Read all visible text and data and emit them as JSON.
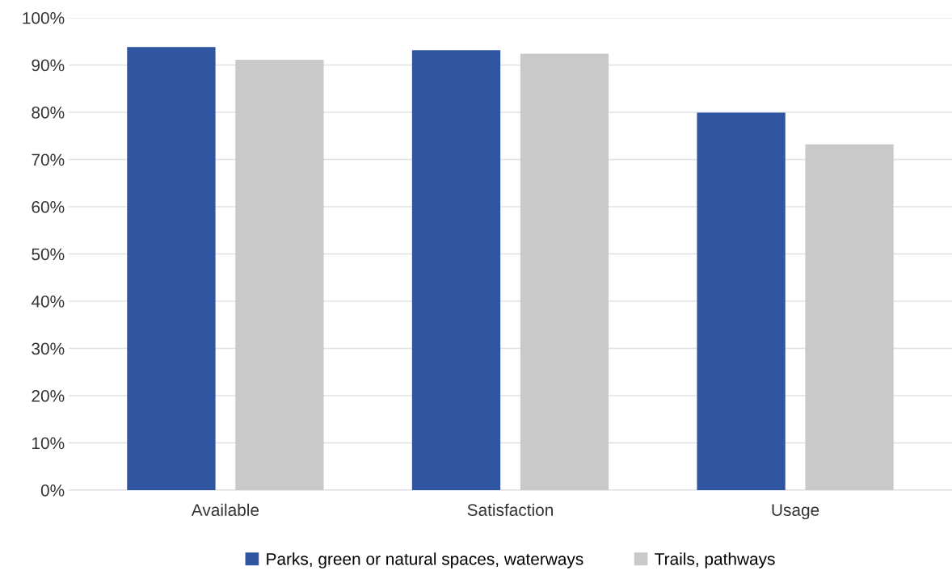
{
  "chart_data": {
    "type": "bar",
    "categories": [
      "Available",
      "Satisfaction",
      "Usage"
    ],
    "series": [
      {
        "name": "Parks, green or natural spaces, waterways",
        "color": "#2f54a0",
        "values": [
          93.8,
          93.1,
          79.9
        ]
      },
      {
        "name": "Trails, pathways",
        "color": "#c9c9c9",
        "values": [
          91.1,
          92.4,
          73.2
        ]
      }
    ],
    "ylim": [
      0,
      100
    ],
    "yticks": [
      {
        "value": 0,
        "label": "0%"
      },
      {
        "value": 10,
        "label": "10%"
      },
      {
        "value": 20,
        "label": "20%"
      },
      {
        "value": 30,
        "label": "30%"
      },
      {
        "value": 40,
        "label": "40%"
      },
      {
        "value": 50,
        "label": "50%"
      },
      {
        "value": 60,
        "label": "60%"
      },
      {
        "value": 70,
        "label": "70%"
      },
      {
        "value": 80,
        "label": "80%"
      },
      {
        "value": 90,
        "label": "90%"
      },
      {
        "value": 100,
        "label": "100%"
      }
    ],
    "grid": "y",
    "legend": "bottom"
  }
}
